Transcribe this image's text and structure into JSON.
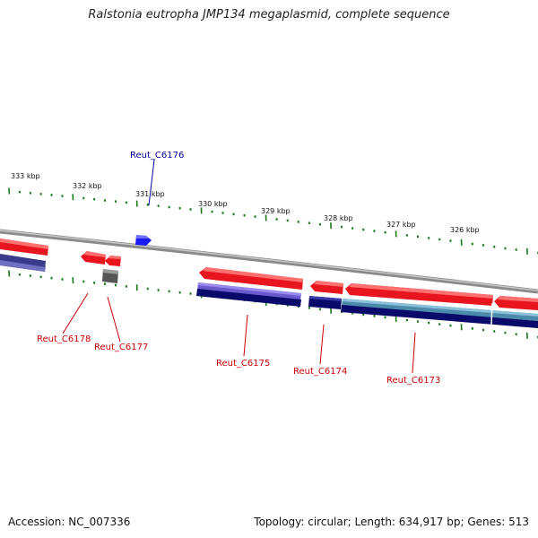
{
  "title": "Ralstonia eutropha JMP134 megaplasmid, complete sequence",
  "footer": {
    "accession": "Accession: NC_007336",
    "summary": "Topology: circular; Length: 634,917 bp; Genes: 513"
  },
  "colors": {
    "forward_gene": "#e8141e",
    "reverse_gene": "#1a1aee",
    "other_gene": "#666666",
    "forward_label": "#cc0000",
    "reverse_label": "#000099",
    "tick": "#1a7a1a",
    "backbone": "#888888",
    "cds_dark": "#0a0a6a",
    "cds_light": "#6a5acd",
    "cds_teal": "#4a8aaa"
  },
  "kbp_labels": [
    "333 kbp",
    "332 kbp",
    "331 kbp",
    "330 kbp",
    "329 kbp",
    "328 kbp",
    "327 kbp",
    "326 kbp"
  ],
  "gene_labels": [
    {
      "id": "reut-c6176",
      "text": "Reut_C6176",
      "strand": "reverse"
    },
    {
      "id": "reut-c6178",
      "text": "Reut_C6178",
      "strand": "forward"
    },
    {
      "id": "reut-c6177",
      "text": "Reut_C6177",
      "strand": "forward"
    },
    {
      "id": "reut-c6175",
      "text": "Reut_C6175",
      "strand": "forward"
    },
    {
      "id": "reut-c6174",
      "text": "Reut_C6174",
      "strand": "forward"
    },
    {
      "id": "reut-c6173",
      "text": "Reut_C6173",
      "strand": "forward"
    }
  ]
}
